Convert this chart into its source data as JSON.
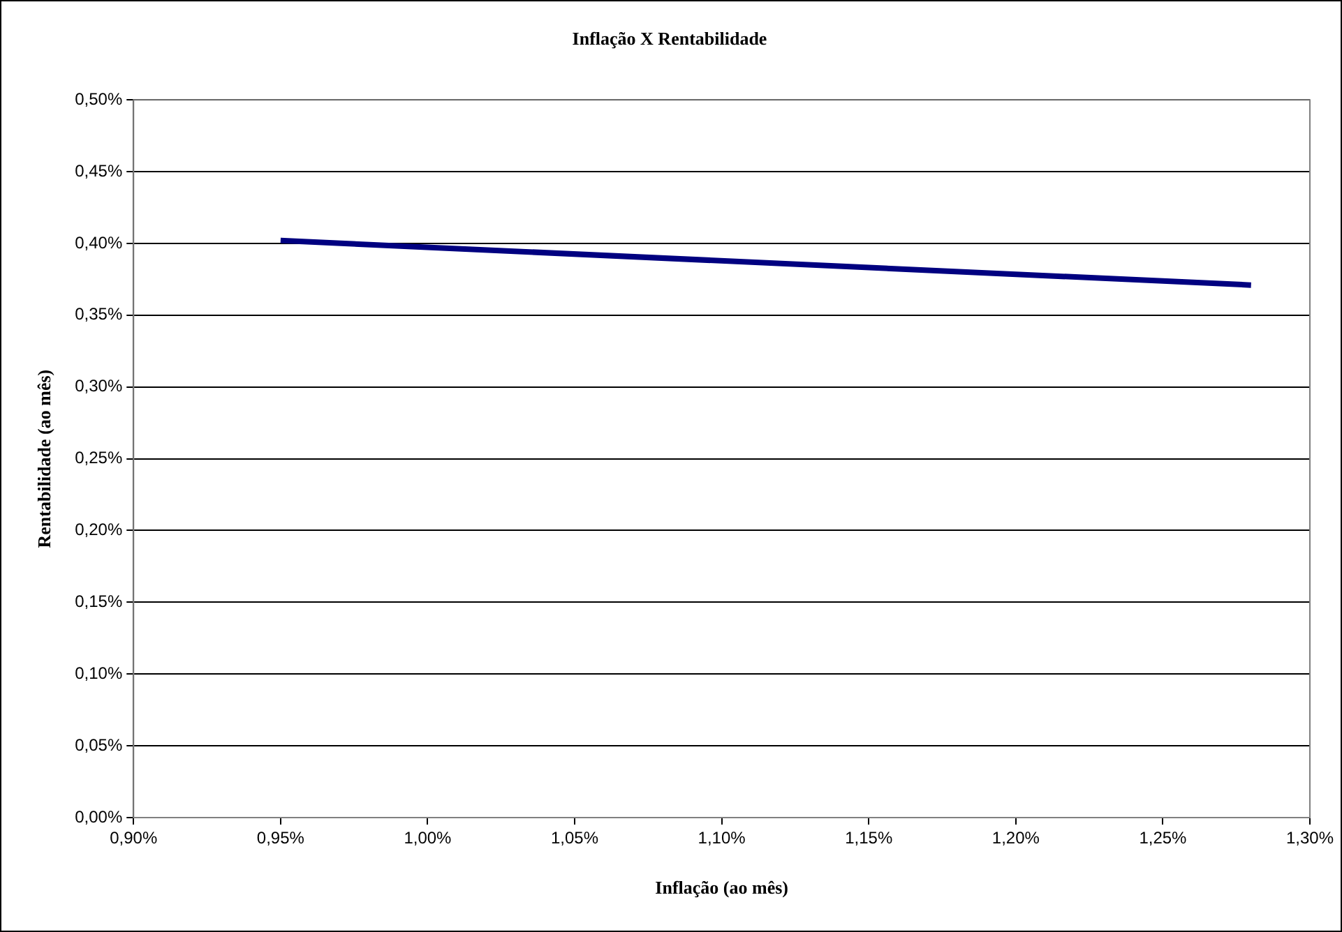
{
  "chart_data": {
    "type": "line",
    "title": "Inflação X Rentabilidade",
    "xlabel": "Inflação (ao mês)",
    "ylabel": "Rentabilidade (ao mês)",
    "x": [
      0.95,
      1.28
    ],
    "series": [
      {
        "color": "#000080",
        "values": [
          0.402,
          0.371
        ]
      }
    ],
    "xlim": [
      0.9,
      1.3
    ],
    "xticks": [
      {
        "value": 0.9,
        "label": "0,90%"
      },
      {
        "value": 0.95,
        "label": "0,95%"
      },
      {
        "value": 1.0,
        "label": "1,00%"
      },
      {
        "value": 1.05,
        "label": "1,05%"
      },
      {
        "value": 1.1,
        "label": "1,10%"
      },
      {
        "value": 1.15,
        "label": "1,15%"
      },
      {
        "value": 1.2,
        "label": "1,20%"
      },
      {
        "value": 1.25,
        "label": "1,25%"
      },
      {
        "value": 1.3,
        "label": "1,30%"
      }
    ],
    "ylim": [
      0,
      0.5
    ],
    "yticks": [
      {
        "value": 0,
        "label": "0,00%"
      },
      {
        "value": 0.05,
        "label": "0,05%"
      },
      {
        "value": 0.1,
        "label": "0,10%"
      },
      {
        "value": 0.15,
        "label": "0,15%"
      },
      {
        "value": 0.2,
        "label": "0,20%"
      },
      {
        "value": 0.25,
        "label": "0,25%"
      },
      {
        "value": 0.3,
        "label": "0,30%"
      },
      {
        "value": 0.35,
        "label": "0,35%"
      },
      {
        "value": 0.4,
        "label": "0,40%"
      },
      {
        "value": 0.45,
        "label": "0,45%"
      },
      {
        "value": 0.5,
        "label": "0,50%"
      }
    ],
    "grid": "y",
    "legend": false,
    "marker": "none",
    "line_style": "solid"
  }
}
